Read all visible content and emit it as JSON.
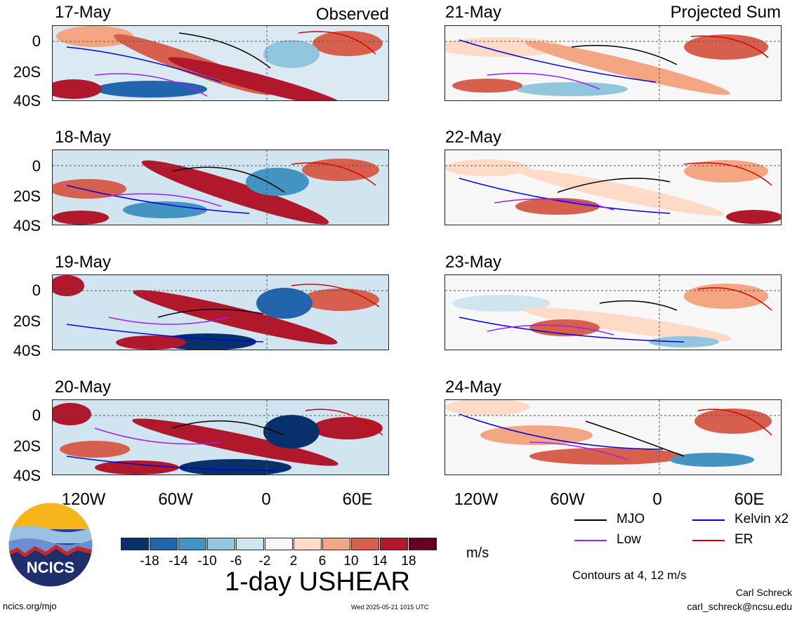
{
  "panels": [
    {
      "date": "17-May",
      "corner": "Observed"
    },
    {
      "date": "18-May",
      "corner": ""
    },
    {
      "date": "19-May",
      "corner": ""
    },
    {
      "date": "20-May",
      "corner": ""
    },
    {
      "date": "21-May",
      "corner": "Projected Sum"
    },
    {
      "date": "22-May",
      "corner": ""
    },
    {
      "date": "23-May",
      "corner": ""
    },
    {
      "date": "24-May",
      "corner": ""
    }
  ],
  "y_ticks": [
    "0",
    "20S",
    "40S"
  ],
  "x_ticks": [
    "120W",
    "60W",
    "0",
    "60E"
  ],
  "legend": {
    "mjo": {
      "label": "MJO",
      "color": "#000000"
    },
    "kelvin": {
      "label": "Kelvin x2",
      "color": "#0000dd"
    },
    "low": {
      "label": "Low",
      "color": "#a020f0"
    },
    "er": {
      "label": "ER",
      "color": "#dd0000"
    }
  },
  "contour_note": "Contours at 4, 12 m/s",
  "colorbar": {
    "ticks": [
      "-18",
      "-14",
      "-10",
      "-6",
      "-2",
      "2",
      "6",
      "10",
      "14",
      "18"
    ],
    "colors": [
      "#08306b",
      "#2166ac",
      "#4393c3",
      "#92c5de",
      "#d1e5f0",
      "#f7f7f7",
      "#fddbc7",
      "#f4a582",
      "#d6604d",
      "#b2182b",
      "#67001f"
    ],
    "units": "m/s"
  },
  "main_title": "1-day USHEAR",
  "logo_text": "NCICS",
  "footer": {
    "url": "ncics.org/mjo",
    "timestamp": "Wed 2025-05-21 1015 UTC",
    "author": "Carl Schreck",
    "email": "carl_schreck@ncsu.edu"
  }
}
